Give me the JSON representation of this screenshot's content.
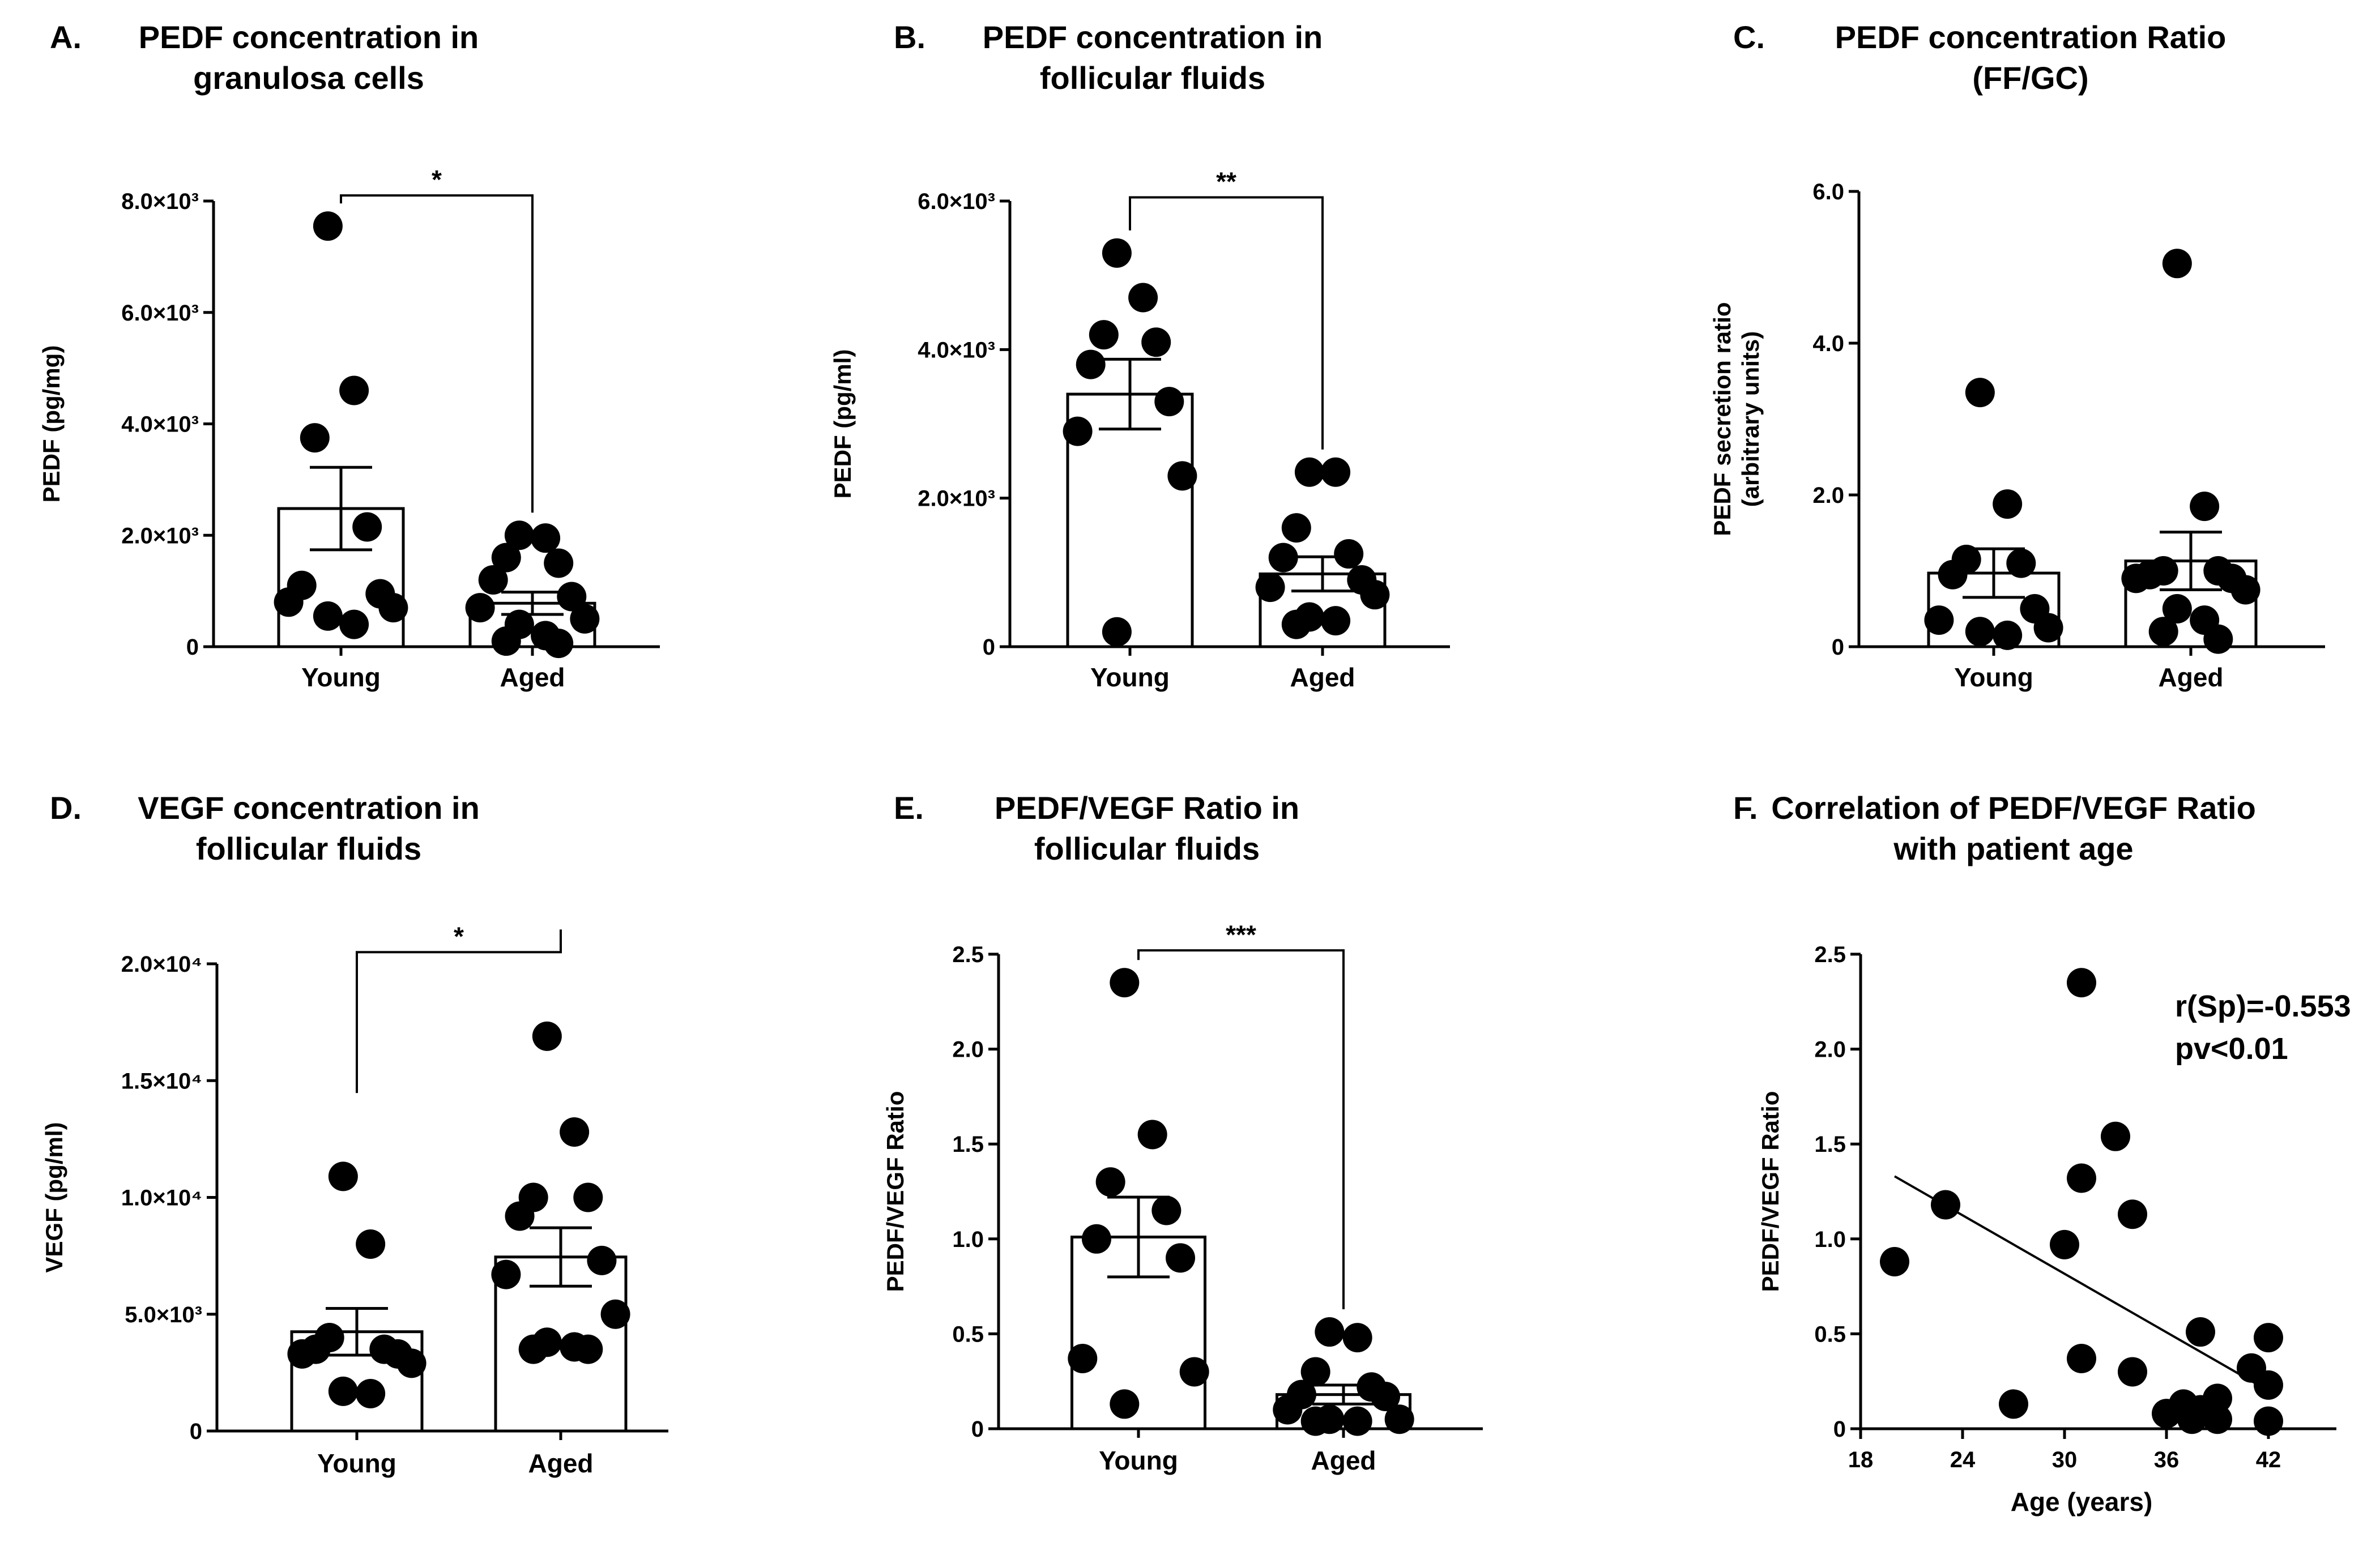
{
  "chart_data": [
    {
      "panel": "A.",
      "type": "bar",
      "title": [
        "PEDF concentration in",
        "granulosa cells"
      ],
      "ylabel": "PEDF (pg/mg)",
      "yticks": [
        {
          "v": 0,
          "t": "0"
        },
        {
          "v": 2000,
          "t": "2.0×10³"
        },
        {
          "v": 4000,
          "t": "4.0×10³"
        },
        {
          "v": 6000,
          "t": "6.0×10³"
        },
        {
          "v": 8000,
          "t": "8.0×10³"
        }
      ],
      "ylim": [
        0,
        8000
      ],
      "categories": [
        "Young",
        "Aged"
      ],
      "means": [
        2480,
        780
      ],
      "sem": [
        740,
        200
      ],
      "points": [
        [
          7550,
          4600,
          3750,
          2150,
          1100,
          950,
          800,
          700,
          550,
          400
        ],
        [
          2000,
          1950,
          1600,
          1500,
          1200,
          900,
          700,
          500,
          400,
          200,
          100,
          60
        ]
      ],
      "significance": "*",
      "bracket_y": 8100,
      "bracket_ends": [
        7550,
        2000
      ]
    },
    {
      "panel": "B.",
      "type": "bar",
      "title": [
        "PEDF concentration in",
        "follicular fluids"
      ],
      "ylabel": "PEDF (pg/ml)",
      "yticks": [
        {
          "v": 0,
          "t": "0"
        },
        {
          "v": 2000,
          "t": "2.0×10³"
        },
        {
          "v": 4000,
          "t": "4.0×10³"
        },
        {
          "v": 6000,
          "t": "6.0×10³"
        }
      ],
      "ylim": [
        0,
        6000
      ],
      "categories": [
        "Young",
        "Aged"
      ],
      "means": [
        3400,
        980
      ],
      "sem": [
        470,
        230
      ],
      "points": [
        [
          5300,
          4700,
          4200,
          4100,
          3800,
          3300,
          2900,
          2300,
          200
        ],
        [
          2350,
          2350,
          1600,
          1250,
          1200,
          900,
          800,
          700,
          400,
          350,
          300
        ]
      ],
      "significance": "**",
      "bracket_y": 6050,
      "bracket_ends": [
        5300,
        2350
      ]
    },
    {
      "panel": "C.",
      "type": "bar",
      "title": [
        "PEDF concentration Ratio",
        "(FF/GC)"
      ],
      "ylabel": [
        "PEDF secretion ratio",
        "(arbitrary units)"
      ],
      "yticks": [
        {
          "v": 0,
          "t": "0"
        },
        {
          "v": 2,
          "t": "2.0"
        },
        {
          "v": 4,
          "t": "4.0"
        },
        {
          "v": 6,
          "t": "6.0"
        }
      ],
      "ylim": [
        0,
        6
      ],
      "categories": [
        "Young",
        "Aged"
      ],
      "means": [
        0.97,
        1.13
      ],
      "sem": [
        0.32,
        0.38
      ],
      "points": [
        [
          3.35,
          1.88,
          1.15,
          1.1,
          0.95,
          0.5,
          0.35,
          0.25,
          0.2,
          0.15
        ],
        [
          5.05,
          1.85,
          1.0,
          1.0,
          0.95,
          0.9,
          0.9,
          0.75,
          0.5,
          0.35,
          0.2,
          0.1
        ]
      ]
    },
    {
      "panel": "D.",
      "type": "bar",
      "title": [
        "VEGF concentration in",
        "follicular fluids"
      ],
      "ylabel": "VEGF (pg/ml)",
      "yticks": [
        {
          "v": 0,
          "t": "0"
        },
        {
          "v": 5000,
          "t": "5.0×10³"
        },
        {
          "v": 10000,
          "t": "1.0×10⁴"
        },
        {
          "v": 15000,
          "t": "1.5×10⁴"
        },
        {
          "v": 20000,
          "t": "2.0×10⁴"
        }
      ],
      "ylim": [
        0,
        20000
      ],
      "categories": [
        "Young",
        "Aged"
      ],
      "means": [
        4250,
        7450
      ],
      "sem": [
        1000,
        1250
      ],
      "points": [
        [
          10900,
          8000,
          4000,
          3500,
          3500,
          3300,
          3300,
          2900,
          1700,
          1600
        ],
        [
          16900,
          12800,
          10000,
          10000,
          9200,
          7300,
          6700,
          5000,
          3800,
          3600,
          3500,
          3500
        ]
      ],
      "significance": "*",
      "bracket_y": 20500,
      "bracket_ends": [
        13500,
        20500
      ]
    },
    {
      "panel": "E.",
      "type": "bar",
      "title": [
        "PEDF/VEGF Ratio in",
        "follicular fluids"
      ],
      "ylabel": "PEDF/VEGF Ratio",
      "yticks": [
        {
          "v": 0,
          "t": "0"
        },
        {
          "v": 0.5,
          "t": "0.5"
        },
        {
          "v": 1.0,
          "t": "1.0"
        },
        {
          "v": 1.5,
          "t": "1.5"
        },
        {
          "v": 2.0,
          "t": "2.0"
        },
        {
          "v": 2.5,
          "t": "2.5"
        }
      ],
      "ylim": [
        0,
        2.5
      ],
      "categories": [
        "Young",
        "Aged"
      ],
      "means": [
        1.01,
        0.18
      ],
      "sem": [
        0.21,
        0.05
      ],
      "points": [
        [
          2.35,
          1.55,
          1.3,
          1.15,
          1.0,
          0.9,
          0.37,
          0.3,
          0.13
        ],
        [
          0.51,
          0.48,
          0.3,
          0.22,
          0.18,
          0.17,
          0.1,
          0.05,
          0.05,
          0.04,
          0.04
        ]
      ],
      "significance": "***",
      "bracket_y": 2.52,
      "bracket_ends": [
        2.35,
        0.51
      ]
    },
    {
      "panel": "F.",
      "type": "scatter",
      "title": [
        "Correlation of PEDF/VEGF Ratio",
        "with patient age"
      ],
      "ylabel": "PEDF/VEGF Ratio",
      "xlabel": "Age (years)",
      "xlim": [
        18,
        46
      ],
      "ylim": [
        0,
        2.5
      ],
      "xticks": [
        {
          "v": 18,
          "t": "18"
        },
        {
          "v": 24,
          "t": "24"
        },
        {
          "v": 30,
          "t": "30"
        },
        {
          "v": 36,
          "t": "36"
        },
        {
          "v": 42,
          "t": "42"
        }
      ],
      "yticks": [
        {
          "v": 0,
          "t": "0"
        },
        {
          "v": 0.5,
          "t": "0.5"
        },
        {
          "v": 1.0,
          "t": "1.0"
        },
        {
          "v": 1.5,
          "t": "1.5"
        },
        {
          "v": 2.0,
          "t": "2.0"
        },
        {
          "v": 2.5,
          "t": "2.5"
        }
      ],
      "points": [
        [
          20,
          0.88
        ],
        [
          23,
          1.18
        ],
        [
          27,
          0.13
        ],
        [
          30,
          0.97
        ],
        [
          31,
          2.35
        ],
        [
          31,
          1.32
        ],
        [
          31,
          0.37
        ],
        [
          33,
          1.54
        ],
        [
          34,
          1.13
        ],
        [
          34,
          0.3
        ],
        [
          36,
          0.08
        ],
        [
          37,
          0.13
        ],
        [
          37.5,
          0.05
        ],
        [
          38,
          0.51
        ],
        [
          38,
          0.1
        ],
        [
          39,
          0.05
        ],
        [
          39,
          0.16
        ],
        [
          41,
          0.32
        ],
        [
          42,
          0.48
        ],
        [
          42,
          0.23
        ],
        [
          42,
          0.04
        ]
      ],
      "trendline": [
        [
          20,
          1.33
        ],
        [
          42,
          0.2
        ]
      ],
      "stat_line1": "r(Sp)=-0.553",
      "stat_line2": "pv<0.01"
    }
  ]
}
